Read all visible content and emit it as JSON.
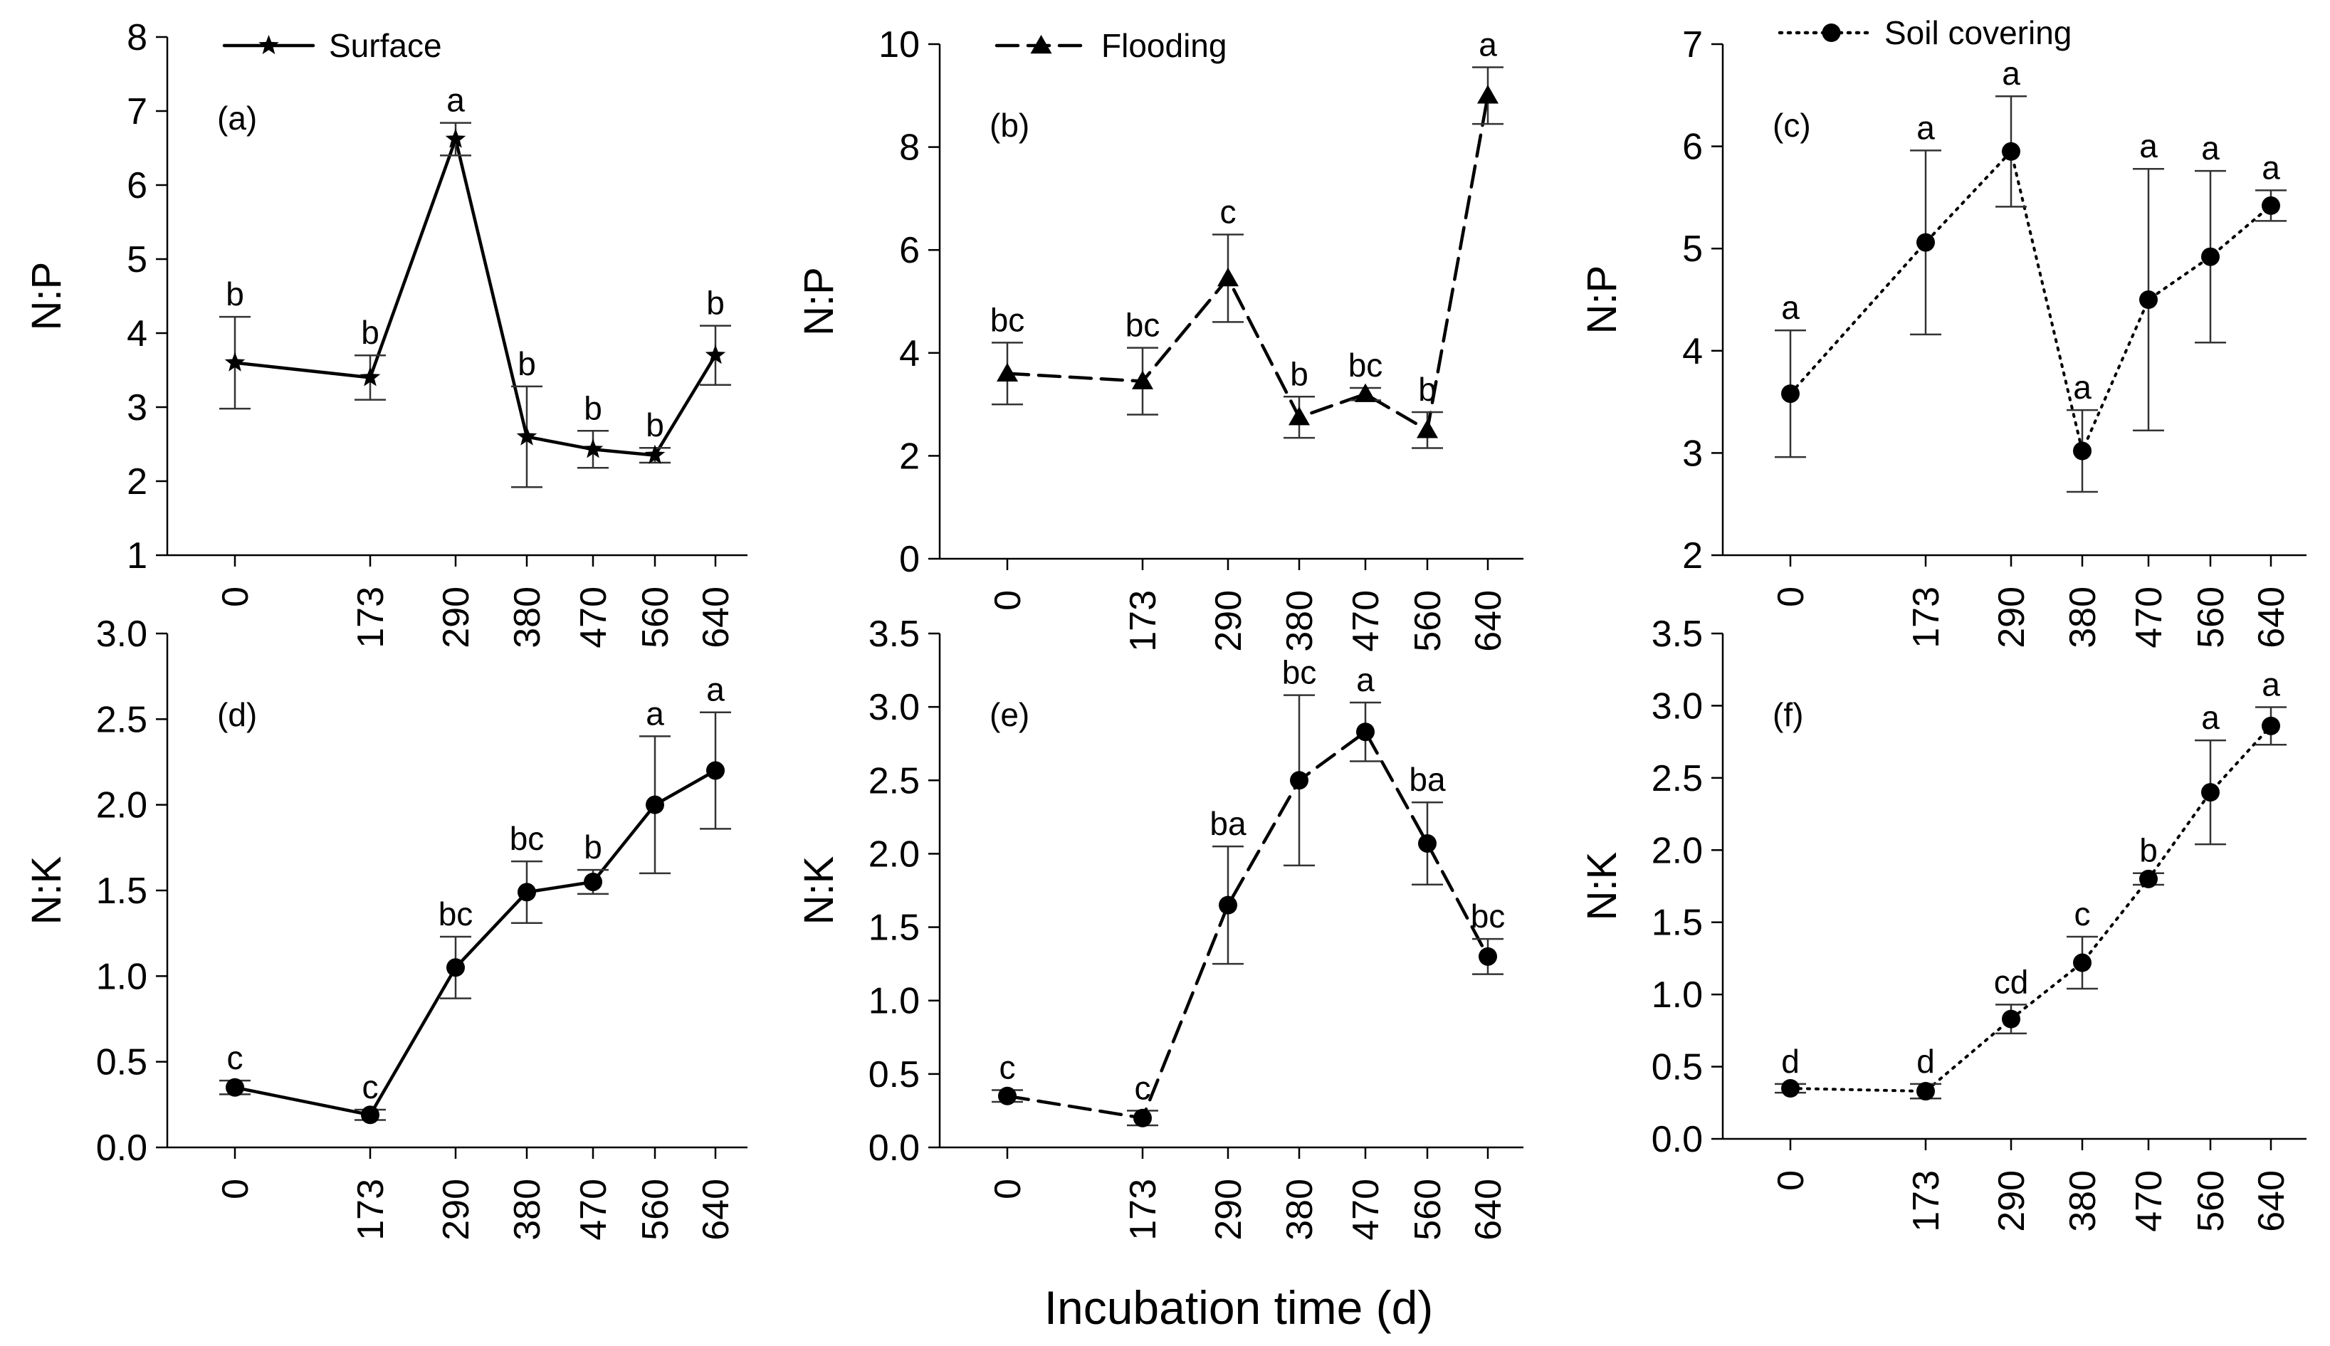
{
  "figure": {
    "xlabel": "Incubation time (d)"
  },
  "chart_data": [
    {
      "type": "line",
      "id": "a",
      "panel_label": "(a)",
      "ylabel": "N:P",
      "series_name": "Surface",
      "marker": "star",
      "style": "solid",
      "show_legend": true,
      "x": [
        0,
        173,
        290,
        380,
        470,
        560,
        640
      ],
      "x_tick_labels": [
        "0",
        "173",
        "290",
        "380",
        "470",
        "560",
        "640"
      ],
      "y": [
        3.6,
        3.4,
        6.62,
        2.6,
        2.43,
        2.35,
        3.7
      ],
      "err": [
        0.62,
        0.3,
        0.22,
        0.68,
        0.25,
        0.1,
        0.4
      ],
      "letters": [
        "b",
        "b",
        "a",
        "b",
        "b",
        "b",
        "b"
      ],
      "ylim": [
        1,
        8
      ],
      "yticks": [
        1,
        2,
        3,
        4,
        5,
        6,
        7,
        8
      ],
      "ytick_labels": [
        "1",
        "2",
        "3",
        "4",
        "5",
        "6",
        "7",
        "8"
      ]
    },
    {
      "type": "line",
      "id": "b",
      "panel_label": "(b)",
      "ylabel": "N:P",
      "series_name": "Flooding",
      "marker": "triangle",
      "style": "dashed",
      "show_legend": true,
      "x": [
        0,
        173,
        290,
        380,
        470,
        560,
        640
      ],
      "x_tick_labels": [
        "0",
        "173",
        "290",
        "380",
        "470",
        "560",
        "640"
      ],
      "y": [
        3.6,
        3.45,
        5.45,
        2.75,
        3.2,
        2.5,
        9.0
      ],
      "err": [
        0.6,
        0.65,
        0.85,
        0.4,
        0.12,
        0.35,
        0.55
      ],
      "letters": [
        "bc",
        "bc",
        "c",
        "b",
        "bc",
        "b",
        "a"
      ],
      "ylim": [
        0,
        10
      ],
      "yticks": [
        0,
        2,
        4,
        6,
        8,
        10
      ],
      "ytick_labels": [
        "0",
        "2",
        "4",
        "6",
        "8",
        "10"
      ]
    },
    {
      "type": "line",
      "id": "c",
      "panel_label": "(c)",
      "ylabel": "N:P",
      "series_name": "Soil covering",
      "marker": "circle",
      "style": "dotted",
      "show_legend": true,
      "x": [
        0,
        173,
        290,
        380,
        470,
        560,
        640
      ],
      "x_tick_labels": [
        "0",
        "173",
        "290",
        "380",
        "470",
        "560",
        "640"
      ],
      "y": [
        3.58,
        5.06,
        5.95,
        3.02,
        4.5,
        4.92,
        5.42
      ],
      "err": [
        0.62,
        0.9,
        0.54,
        0.4,
        1.28,
        0.84,
        0.15
      ],
      "letters": [
        "a",
        "a",
        "a",
        "a",
        "a",
        "a",
        "a"
      ],
      "ylim": [
        2,
        7
      ],
      "yticks": [
        2,
        3,
        4,
        5,
        6,
        7
      ],
      "ytick_labels": [
        "2",
        "3",
        "4",
        "5",
        "6",
        "7"
      ]
    },
    {
      "type": "line",
      "id": "d",
      "panel_label": "(d)",
      "ylabel": "N:K",
      "series_name": "Surface",
      "marker": "circle",
      "style": "solid",
      "show_legend": false,
      "x": [
        0,
        173,
        290,
        380,
        470,
        560,
        640
      ],
      "x_tick_labels": [
        "0",
        "173",
        "290",
        "380",
        "470",
        "560",
        "640"
      ],
      "y": [
        0.35,
        0.19,
        1.05,
        1.49,
        1.55,
        2.0,
        2.2
      ],
      "err": [
        0.04,
        0.03,
        0.18,
        0.18,
        0.07,
        0.4,
        0.34
      ],
      "letters": [
        "c",
        "c",
        "bc",
        "bc",
        "b",
        "a",
        "a"
      ],
      "ylim": [
        0,
        3
      ],
      "yticks": [
        0,
        0.5,
        1,
        1.5,
        2,
        2.5,
        3
      ],
      "ytick_labels": [
        "0.0",
        "0.5",
        "1.0",
        "1.5",
        "2.0",
        "2.5",
        "3.0"
      ]
    },
    {
      "type": "line",
      "id": "e",
      "panel_label": "(e)",
      "ylabel": "N:K",
      "series_name": "Flooding",
      "marker": "circle",
      "style": "dashed",
      "show_legend": false,
      "x": [
        0,
        173,
        290,
        380,
        470,
        560,
        640
      ],
      "x_tick_labels": [
        "0",
        "173",
        "290",
        "380",
        "470",
        "560",
        "640"
      ],
      "y": [
        0.35,
        0.2,
        1.65,
        2.5,
        2.83,
        2.07,
        1.3
      ],
      "err": [
        0.04,
        0.05,
        0.4,
        0.58,
        0.2,
        0.28,
        0.12
      ],
      "letters": [
        "c",
        "c",
        "ba",
        "bc",
        "a",
        "ba",
        "bc"
      ],
      "ylim": [
        0,
        3.5
      ],
      "yticks": [
        0,
        0.5,
        1,
        1.5,
        2,
        2.5,
        3,
        3.5
      ],
      "ytick_labels": [
        "0.0",
        "0.5",
        "1.0",
        "1.5",
        "2.0",
        "2.5",
        "3.0",
        "3.5"
      ]
    },
    {
      "type": "line",
      "id": "f",
      "panel_label": "(f)",
      "ylabel": "N:K",
      "series_name": "Soil covering",
      "marker": "circle",
      "style": "dotted",
      "show_legend": false,
      "x": [
        0,
        173,
        290,
        380,
        470,
        560,
        640
      ],
      "x_tick_labels": [
        "0",
        "173",
        "290",
        "380",
        "470",
        "560",
        "640"
      ],
      "y": [
        0.35,
        0.33,
        0.83,
        1.22,
        1.8,
        2.4,
        2.86
      ],
      "err": [
        0.03,
        0.05,
        0.1,
        0.18,
        0.04,
        0.36,
        0.13
      ],
      "letters": [
        "d",
        "d",
        "cd",
        "c",
        "b",
        "a",
        "a"
      ],
      "ylim": [
        0,
        3.5
      ],
      "yticks": [
        0,
        0.5,
        1,
        1.5,
        2,
        2.5,
        3,
        3.5
      ],
      "ytick_labels": [
        "0.0",
        "0.5",
        "1.0",
        "1.5",
        "2.0",
        "2.5",
        "3.0",
        "3.5"
      ]
    }
  ]
}
